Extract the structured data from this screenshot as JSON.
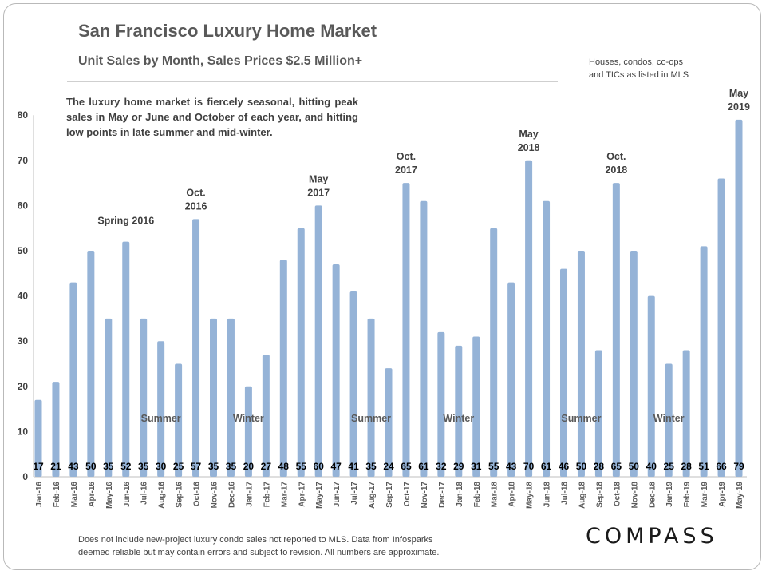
{
  "header": {
    "title": "San Francisco Luxury Home Market",
    "subtitle": "Unit Sales by Month,  Sales Prices $2.5 Million+",
    "note_line1": "Houses, condos, co-ops",
    "note_line2": "and TICs as listed in MLS"
  },
  "callout": "The luxury home market is fiercely seasonal, hitting peak sales in May or June and October of each year, and hitting low points in late summer and mid-winter.",
  "footer": {
    "line1": "Does not include new-project luxury condo sales not reported to MLS. Data from Infosparks",
    "line2": "deemed reliable but may contain errors and subject to revision.  All numbers are approximate."
  },
  "logo": "COMPASS",
  "colors": {
    "bar": "#95b3d7",
    "text": "#404040",
    "axis": "#595959"
  },
  "chart_data": {
    "type": "bar",
    "title": "San Francisco Luxury Home Market",
    "ylim": [
      0,
      80
    ],
    "yticks": [
      0,
      10,
      20,
      30,
      40,
      50,
      60,
      70,
      80
    ],
    "categories": [
      "Jan-16",
      "Feb-16",
      "Mar-16",
      "Apr-16",
      "May-16",
      "Jun-16",
      "Jul-16",
      "Aug-16",
      "Sep-16",
      "Oct-16",
      "Nov-16",
      "Dec-16",
      "Jan-17",
      "Feb-17",
      "Mar-17",
      "Apr-17",
      "May-17",
      "Jun-17",
      "Jul-17",
      "Aug-17",
      "Sep-17",
      "Oct-17",
      "Nov-17",
      "Dec-17",
      "Jan-18",
      "Feb-18",
      "Mar-18",
      "Apr-18",
      "May-18",
      "Jun-18",
      "Jul-18",
      "Aug-18",
      "Sep-18",
      "Oct-18",
      "Nov-18",
      "Dec-18",
      "Jan-19",
      "Feb-19",
      "Mar-19",
      "Apr-19",
      "May-19"
    ],
    "values": [
      17,
      21,
      43,
      50,
      35,
      52,
      35,
      30,
      25,
      57,
      35,
      35,
      20,
      27,
      48,
      55,
      60,
      47,
      41,
      35,
      24,
      65,
      61,
      32,
      29,
      31,
      55,
      43,
      70,
      61,
      46,
      50,
      28,
      65,
      50,
      40,
      25,
      28,
      51,
      66,
      79
    ],
    "peak_labels": [
      {
        "index": 5,
        "lines": [
          "Spring 2016"
        ]
      },
      {
        "index": 9,
        "lines": [
          "Oct.",
          "2016"
        ]
      },
      {
        "index": 16,
        "lines": [
          "May",
          "2017"
        ]
      },
      {
        "index": 21,
        "lines": [
          "Oct.",
          "2017"
        ]
      },
      {
        "index": 28,
        "lines": [
          "May",
          "2018"
        ]
      },
      {
        "index": 33,
        "lines": [
          "Oct.",
          "2018"
        ]
      },
      {
        "index": 40,
        "lines": [
          "May",
          "2019"
        ]
      }
    ],
    "season_labels": [
      {
        "index": 7,
        "text": "Summer"
      },
      {
        "index": 12,
        "text": "Winter"
      },
      {
        "index": 19,
        "text": "Summer"
      },
      {
        "index": 24,
        "text": "Winter"
      },
      {
        "index": 31,
        "text": "Summer"
      },
      {
        "index": 36,
        "text": "Winter"
      }
    ]
  }
}
